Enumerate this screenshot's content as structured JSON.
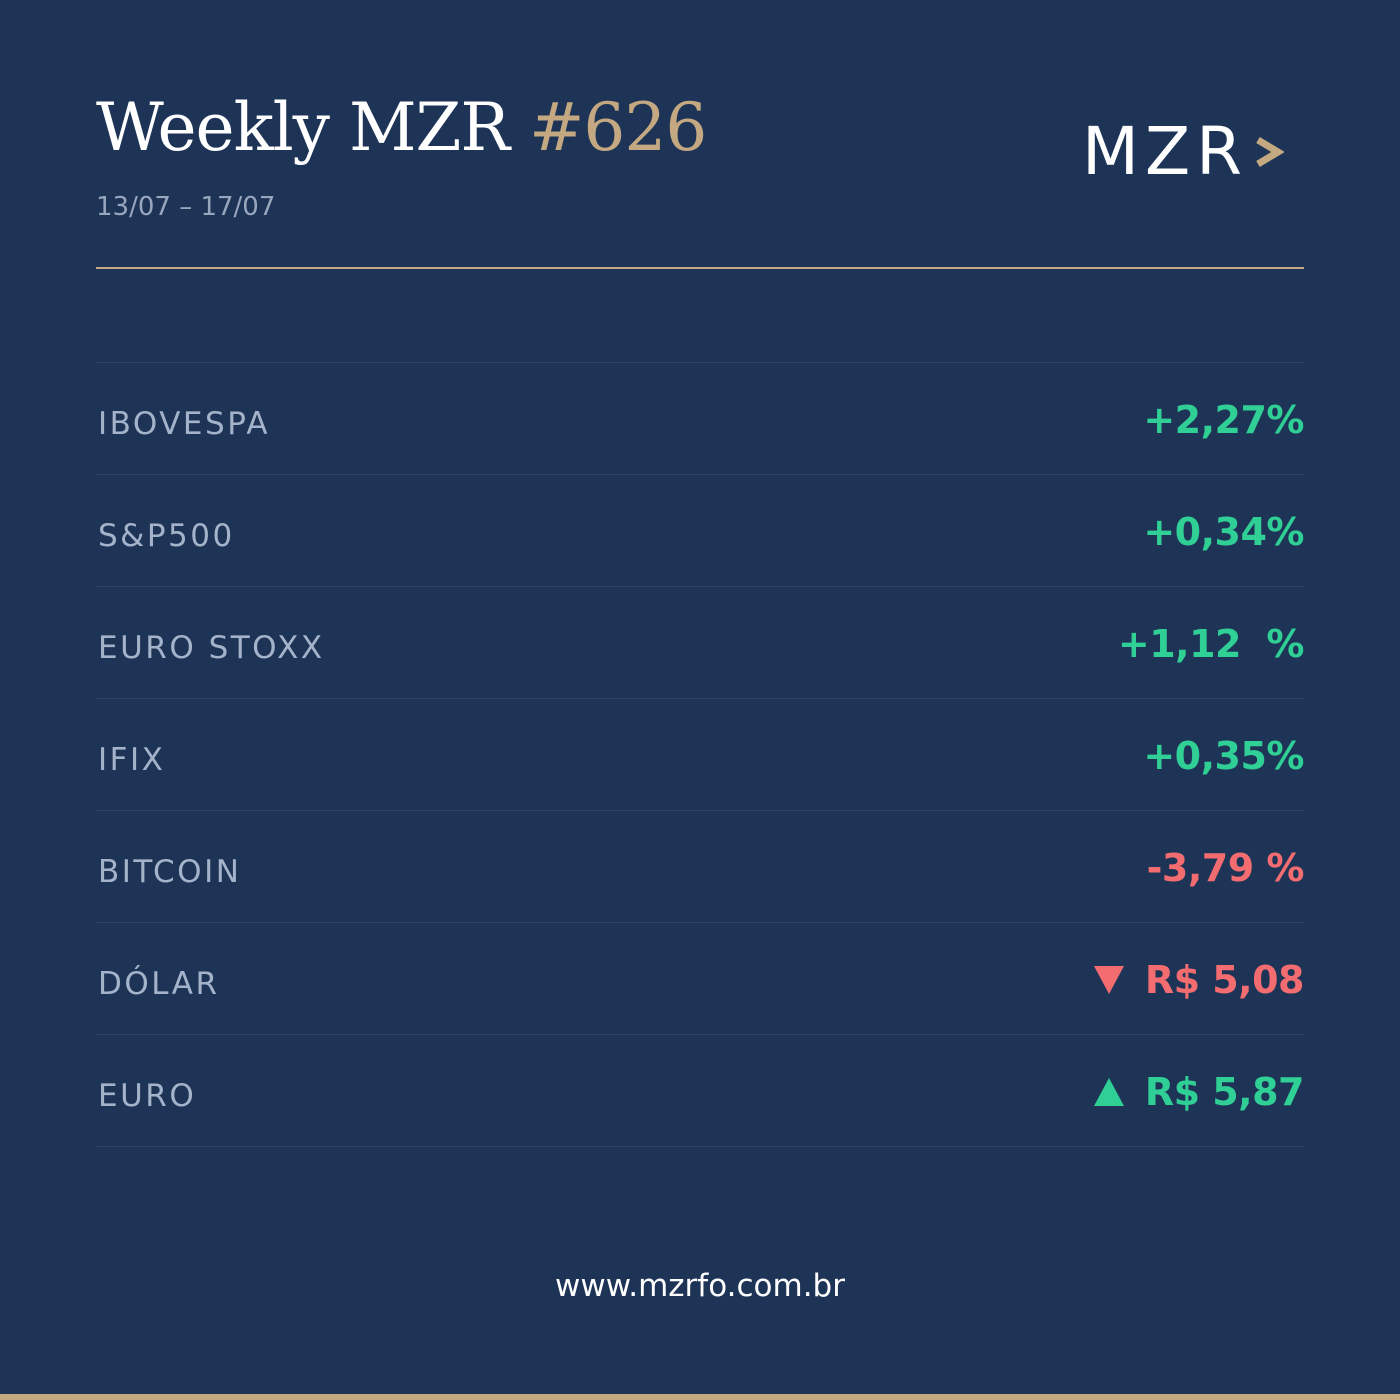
{
  "header": {
    "title": "Weekly MZR",
    "number": "#626",
    "date_range": "13/07 – 17/07"
  },
  "logo": {
    "text": "MZR",
    "chevron_icon": "chevron-right-icon"
  },
  "quotes": [
    {
      "label": "IBOVESPA",
      "value": "+2,27%",
      "trend": "up"
    },
    {
      "label": "S&P500",
      "value": "+0,34%",
      "trend": "up"
    },
    {
      "label": "EURO STOXX",
      "value": "+1,12  %",
      "trend": "up"
    },
    {
      "label": "IFIX",
      "value": "+0,35%",
      "trend": "up"
    },
    {
      "label": "BITCOIN",
      "value": "-3,79 %",
      "trend": "down"
    },
    {
      "label": "DÓLAR",
      "value": "R$ 5,08",
      "trend": "down",
      "icon": "triangle-down-icon"
    },
    {
      "label": "EURO",
      "value": "R$ 5,87",
      "trend": "up",
      "icon": "triangle-up-icon"
    }
  ],
  "footer": {
    "website": "www.mzrfo.com.br"
  },
  "colors": {
    "background": "#1e3457",
    "gold_accent": "#c4a882",
    "positive": "#2fcf95",
    "negative": "#f36c70",
    "label": "#a4b3ca"
  }
}
